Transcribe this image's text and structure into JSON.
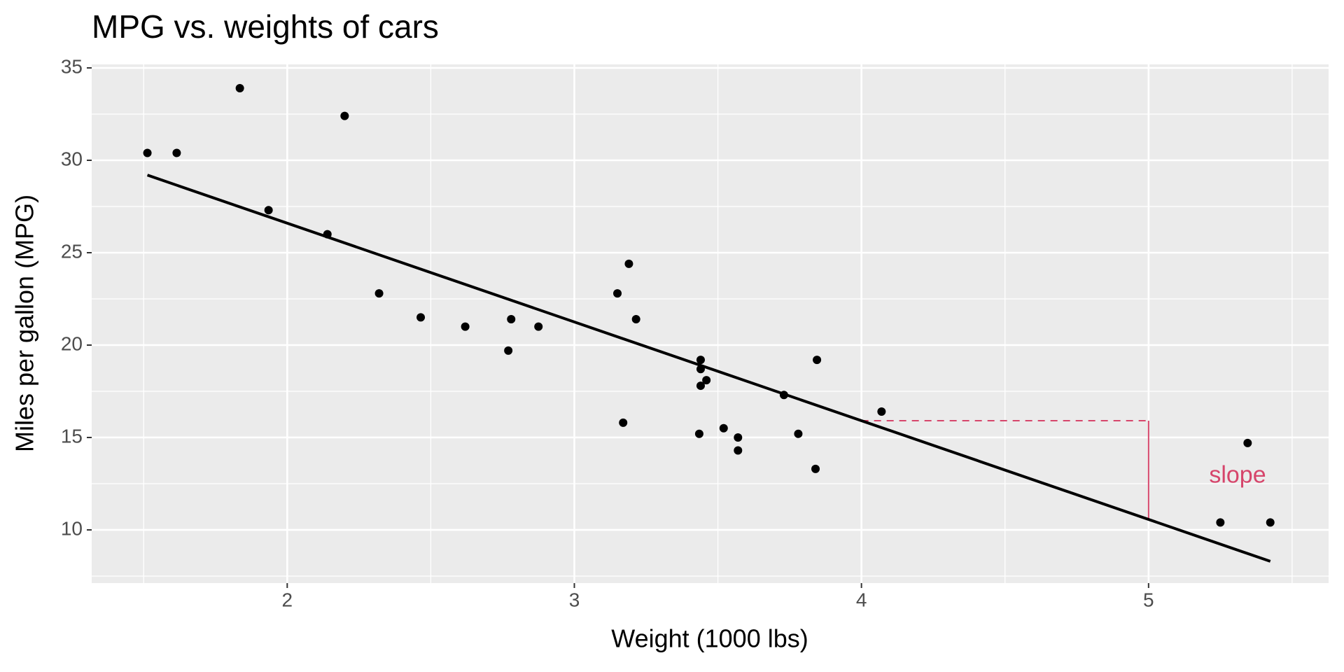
{
  "chart_data": {
    "type": "scatter",
    "title": "MPG vs. weights of cars",
    "x_label": "Weight (1000 lbs)",
    "y_label": "Miles per gallon (MPG)",
    "x": [
      2.62,
      2.875,
      2.32,
      3.215,
      3.44,
      3.46,
      3.57,
      3.19,
      3.15,
      3.44,
      3.44,
      4.07,
      3.73,
      3.78,
      5.25,
      5.424,
      5.345,
      2.2,
      1.615,
      1.835,
      2.465,
      3.52,
      3.435,
      3.84,
      3.845,
      1.935,
      2.14,
      1.513,
      3.17,
      2.77,
      3.57,
      2.78
    ],
    "values": [
      21.0,
      21.0,
      22.8,
      21.4,
      18.7,
      18.1,
      14.3,
      24.4,
      22.8,
      19.2,
      17.8,
      16.4,
      17.3,
      15.2,
      10.4,
      10.4,
      14.7,
      32.4,
      30.4,
      33.9,
      21.5,
      15.5,
      15.2,
      13.3,
      19.2,
      27.3,
      26.0,
      30.4,
      15.8,
      19.7,
      15.0,
      21.4
    ],
    "color": "#000000",
    "fit_line": {
      "x": [
        1.513,
        5.424
      ],
      "y": [
        29.199,
        8.299
      ],
      "color": "#000000"
    },
    "slope_segment": {
      "x": [
        4,
        5
      ],
      "y": [
        15.909,
        10.565
      ],
      "color": "#d6456b"
    },
    "annotations": [
      {
        "text": "slope",
        "x": 5.31,
        "y": 12.9,
        "color": "#d6456b"
      }
    ],
    "xlim": [
      1.319,
      5.627
    ],
    "ylim": [
      7.12,
      35.19
    ],
    "xticks": [
      2,
      3,
      4,
      5
    ],
    "yticks": [
      10,
      15,
      20,
      25,
      30,
      35
    ],
    "grid": true
  }
}
